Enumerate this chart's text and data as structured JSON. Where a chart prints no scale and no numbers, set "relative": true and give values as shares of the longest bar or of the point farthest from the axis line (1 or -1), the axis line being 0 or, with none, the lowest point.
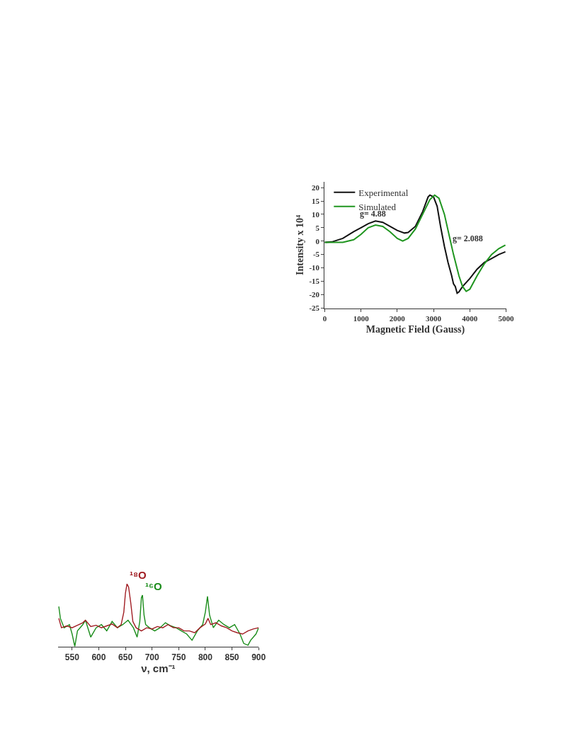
{
  "chart_data": [
    {
      "type": "line",
      "xlabel": "Magnetic Field (Gauss)",
      "ylabel": "Intensity x 10⁴",
      "xlim": [
        0,
        5000
      ],
      "ylim": [
        -25.2,
        22.2
      ],
      "xticks": [
        0,
        1000,
        2000,
        3000,
        4000,
        5000
      ],
      "yticks": [
        -25,
        -20,
        -15,
        -10,
        -5,
        0,
        5,
        10,
        15,
        20
      ],
      "legend": "top left",
      "annotations": [
        "g= 4.88",
        "g= 2.088"
      ],
      "series": [
        {
          "name": "Experimental",
          "color": "#111111",
          "x": [
            0,
            200,
            500,
            800,
            1000,
            1200,
            1400,
            1600,
            1800,
            2000,
            2200,
            2300,
            2500,
            2700,
            2850,
            2900,
            3000,
            3100,
            3200,
            3300,
            3400,
            3500,
            3550,
            3600,
            3650,
            3700,
            3800,
            4000,
            4200,
            4400,
            4600,
            4800,
            4980
          ],
          "values": [
            -0.5,
            -0.3,
            1,
            3.5,
            5,
            6.5,
            7.5,
            7,
            5.5,
            4,
            3,
            3.2,
            5.5,
            11,
            16.5,
            17.2,
            16.5,
            13,
            5,
            -2,
            -8,
            -13,
            -16,
            -17,
            -19.5,
            -19,
            -17,
            -14,
            -10.5,
            -8,
            -6.5,
            -5,
            -4
          ]
        },
        {
          "name": "Simulated",
          "color": "#1f951f",
          "x": [
            0,
            500,
            800,
            1000,
            1200,
            1400,
            1600,
            1800,
            2000,
            2150,
            2300,
            2500,
            2700,
            2900,
            3030,
            3150,
            3300,
            3450,
            3550,
            3700,
            3800,
            3900,
            4000,
            4200,
            4400,
            4600,
            4800,
            4980
          ],
          "values": [
            -0.5,
            -0.5,
            0.5,
            2.5,
            5,
            6,
            5.5,
            3.5,
            1,
            0,
            1,
            4.5,
            10,
            15.5,
            17.2,
            16,
            10,
            1,
            -5,
            -13,
            -17,
            -18.8,
            -18,
            -13,
            -8.5,
            -5,
            -2.8,
            -1.5
          ]
        }
      ]
    },
    {
      "type": "line",
      "relative": true,
      "xlabel": "ν, cm⁻¹",
      "xlim": [
        523,
        900
      ],
      "xticks": [
        550,
        600,
        650,
        700,
        750,
        800,
        850,
        900
      ],
      "legend": false,
      "series": [
        {
          "name": "¹⁶O",
          "color": "#1a8c1a",
          "x": [
            525,
            528,
            535,
            545,
            550,
            555,
            560,
            570,
            575,
            585,
            595,
            605,
            615,
            625,
            635,
            645,
            655,
            665,
            672,
            677,
            680,
            682,
            685,
            688,
            695,
            705,
            715,
            725,
            735,
            745,
            755,
            765,
            775,
            785,
            795,
            800,
            804,
            808,
            815,
            825,
            835,
            845,
            855,
            865,
            872,
            880,
            885,
            895,
            900
          ],
          "values": [
            0.64,
            0.45,
            0.3,
            0.35,
            0.2,
            0.0,
            0.25,
            0.35,
            0.42,
            0.15,
            0.3,
            0.35,
            0.25,
            0.4,
            0.3,
            0.35,
            0.42,
            0.3,
            0.15,
            0.4,
            0.78,
            0.82,
            0.5,
            0.35,
            0.3,
            0.25,
            0.3,
            0.38,
            0.33,
            0.3,
            0.25,
            0.2,
            0.1,
            0.25,
            0.35,
            0.55,
            0.8,
            0.5,
            0.3,
            0.42,
            0.35,
            0.3,
            0.35,
            0.2,
            0.05,
            0.02,
            0.1,
            0.2,
            0.3
          ]
        },
        {
          "name": "¹⁸O",
          "color": "#a01c22",
          "x": [
            525,
            530,
            540,
            550,
            560,
            570,
            575,
            585,
            595,
            605,
            615,
            625,
            635,
            642,
            647,
            650,
            653,
            656,
            660,
            664,
            670,
            680,
            690,
            700,
            710,
            720,
            730,
            740,
            750,
            760,
            770,
            780,
            790,
            800,
            805,
            810,
            820,
            830,
            840,
            850,
            860,
            870,
            880,
            890,
            900
          ],
          "values": [
            0.45,
            0.3,
            0.33,
            0.3,
            0.34,
            0.38,
            0.42,
            0.32,
            0.34,
            0.3,
            0.33,
            0.36,
            0.3,
            0.35,
            0.55,
            0.85,
            1.0,
            0.95,
            0.7,
            0.4,
            0.3,
            0.25,
            0.3,
            0.28,
            0.32,
            0.3,
            0.35,
            0.3,
            0.3,
            0.25,
            0.25,
            0.22,
            0.3,
            0.36,
            0.45,
            0.35,
            0.38,
            0.33,
            0.3,
            0.25,
            0.22,
            0.2,
            0.25,
            0.28,
            0.3
          ]
        }
      ]
    }
  ]
}
